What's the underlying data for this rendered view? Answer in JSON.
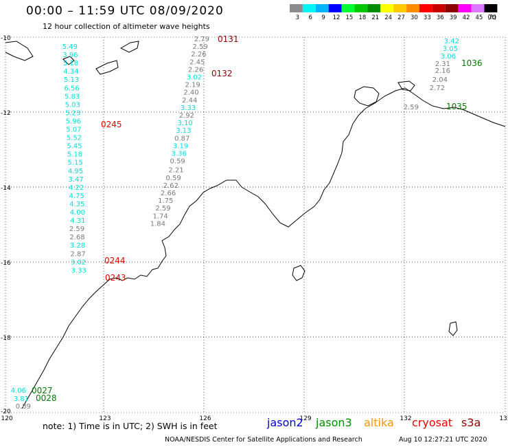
{
  "header": {
    "title": "00:00 – 11:59 UTC 08/09/2020",
    "subtitle": "12 hour collection of altimeter wave heights"
  },
  "legend": {
    "unit": "(ft)",
    "bins": [
      {
        "label": "3",
        "color": "#8c8c8c"
      },
      {
        "label": "6",
        "color": "#00f5f5"
      },
      {
        "label": "9",
        "color": "#00b4ff"
      },
      {
        "label": "12",
        "color": "#0000ff"
      },
      {
        "label": "15",
        "color": "#00ff32"
      },
      {
        "label": "18",
        "color": "#00c800"
      },
      {
        "label": "21",
        "color": "#008c00"
      },
      {
        "label": "24",
        "color": "#ffff00"
      },
      {
        "label": "27",
        "color": "#ffc800"
      },
      {
        "label": "30",
        "color": "#ff8c00"
      },
      {
        "label": "33",
        "color": "#ff0000"
      },
      {
        "label": "36",
        "color": "#c80000"
      },
      {
        "label": "39",
        "color": "#8c0000"
      },
      {
        "label": "42",
        "color": "#ff00ff"
      },
      {
        "label": "45",
        "color": "#dc78ff"
      },
      {
        "label": "70",
        "color": "#000000"
      }
    ]
  },
  "axes": {
    "lon_ticks": [
      "120",
      "123",
      "126",
      "129",
      "132",
      "135"
    ],
    "lat_ticks": [
      "-10",
      "-12",
      "-14",
      "-16",
      "-18",
      "-20"
    ]
  },
  "colors": {
    "swh_low": "#787878",
    "swh_mid": "#00dcdc",
    "time_s3a": "#8c0000",
    "time_cryosat": "#e60000",
    "time_jason3": "#007800"
  },
  "tracks": [
    {
      "mission": "s3a",
      "times": [
        "0131",
        "0132"
      ],
      "values": [
        "2.79",
        "2.59",
        "2.26",
        "2.45",
        "2.26",
        "3.02",
        "2.19",
        "2.40",
        "2.44",
        "3.33",
        "2.92",
        "3.10",
        "3.13",
        "0.87",
        "3.19",
        "3.36",
        "0.59",
        "2.21",
        "0.59",
        "2.62",
        "2.66",
        "1.75",
        "2.59",
        "1.74",
        "1.84"
      ]
    },
    {
      "mission": "cryosat",
      "times": [
        "0245",
        "0244",
        "0243"
      ],
      "values": [
        "5.49",
        "3.96",
        "5.18",
        "4.34",
        "5.13",
        "6.56",
        "5.83",
        "5.03",
        "5.23",
        "5.96",
        "5.07",
        "5.52",
        "5.45",
        "5.18",
        "5.15",
        "4.95",
        "3.47",
        "4.22",
        "4.75",
        "4.35",
        "4.00",
        "4.31",
        "2.59",
        "2.68",
        "3.28",
        "2.87",
        "3.02",
        "3.33"
      ]
    },
    {
      "mission": "jason3",
      "times": [
        "1036",
        "1035",
        "0027",
        "0028"
      ],
      "values": [
        "3.42",
        "3.05",
        "3.06",
        "2.31",
        "2.16",
        "2.04",
        "2.72",
        "2.59",
        "4.06",
        "3.81",
        "0.89"
      ]
    }
  ],
  "missions": [
    {
      "label": "jason2",
      "color": "#0000dc"
    },
    {
      "label": "jason3",
      "color": "#008c00"
    },
    {
      "label": "altika",
      "color": "#ff9600"
    },
    {
      "label": "cryosat",
      "color": "#e60000"
    },
    {
      "label": "s3a",
      "color": "#8c0000"
    }
  ],
  "footer": {
    "note": "note: 1) Time is in UTC; 2) SWH is in feet",
    "credit": "NOAA/NESDIS Center for Satellite Applications and Research",
    "timestamp": "Aug 10 12:27:21 UTC 2020"
  }
}
